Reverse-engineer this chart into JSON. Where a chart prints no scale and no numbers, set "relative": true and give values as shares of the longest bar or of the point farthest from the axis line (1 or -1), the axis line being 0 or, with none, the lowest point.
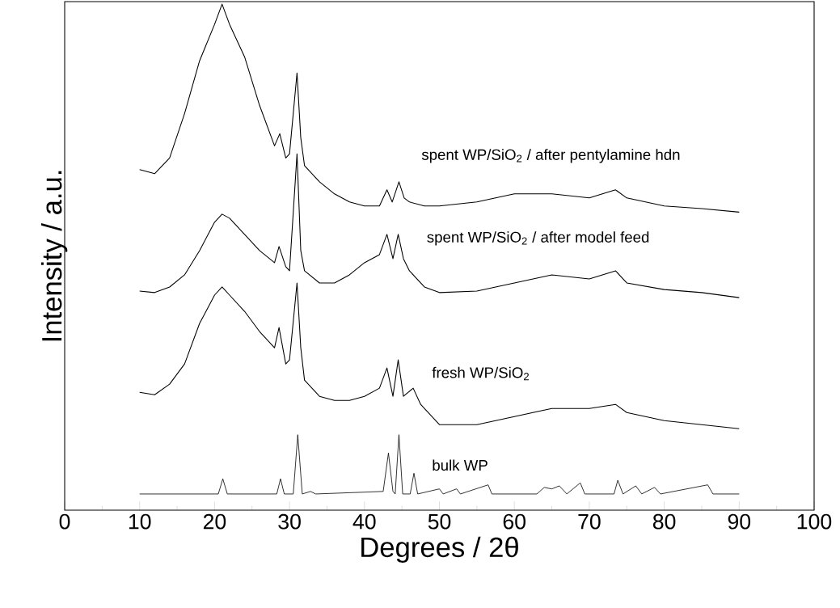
{
  "chart_data": {
    "type": "line",
    "relative": true,
    "xlabel": "Degrees / 2θ",
    "ylabel": "Intensity / a.u.",
    "xlim": [
      0,
      100
    ],
    "xticks": [
      0,
      10,
      20,
      30,
      40,
      50,
      60,
      70,
      80,
      90,
      100
    ],
    "tick_labels": "x",
    "grid": false,
    "legend": false,
    "marker": "none",
    "line_style": "solid",
    "series": [
      {
        "name": "spent WP/SiO$_{2}$ / after pentylamine hdn",
        "color": "#000000",
        "x": [
          10,
          12,
          14,
          16,
          18,
          20,
          21,
          22,
          24,
          26,
          28,
          28.7,
          29.5,
          30,
          31,
          31.5,
          32,
          34,
          36,
          38,
          40,
          42,
          43,
          43.7,
          44.6,
          45.3,
          46,
          48,
          50,
          55,
          60,
          65,
          70,
          73.5,
          75,
          80,
          85,
          90
        ],
        "values": [
          0.673,
          0.665,
          0.696,
          0.784,
          0.888,
          0.96,
          1.0,
          0.96,
          0.896,
          0.8,
          0.72,
          0.744,
          0.696,
          0.704,
          0.864,
          0.736,
          0.681,
          0.649,
          0.625,
          0.609,
          0.601,
          0.601,
          0.633,
          0.609,
          0.649,
          0.617,
          0.609,
          0.601,
          0.601,
          0.609,
          0.625,
          0.625,
          0.617,
          0.633,
          0.617,
          0.601,
          0.596,
          0.589
        ]
      },
      {
        "name": "spent WP/SiO$_{2}$ / after model feed",
        "color": "#000000",
        "x": [
          10,
          12,
          14,
          16,
          18,
          20,
          21,
          22,
          24,
          26,
          28,
          28.6,
          29.5,
          30,
          31,
          31.5,
          32,
          34,
          36,
          38,
          40,
          42,
          43,
          43.8,
          44.5,
          45.2,
          46,
          48,
          50,
          55,
          60,
          65,
          70,
          73.5,
          75,
          80,
          85,
          90
        ],
        "values": [
          0.433,
          0.43,
          0.441,
          0.465,
          0.513,
          0.569,
          0.585,
          0.577,
          0.545,
          0.513,
          0.489,
          0.521,
          0.481,
          0.473,
          0.704,
          0.513,
          0.473,
          0.449,
          0.449,
          0.465,
          0.489,
          0.505,
          0.545,
          0.497,
          0.545,
          0.497,
          0.473,
          0.441,
          0.43,
          0.433,
          0.449,
          0.465,
          0.457,
          0.473,
          0.449,
          0.436,
          0.43,
          0.42
        ]
      },
      {
        "name": "fresh WP/SiO$_{2}$",
        "color": "#000000",
        "x": [
          10,
          12,
          14,
          16,
          18,
          20,
          21,
          22,
          24,
          26,
          28,
          28.6,
          29.5,
          30,
          31,
          31.5,
          32,
          34,
          36,
          38,
          40,
          42,
          43,
          43.8,
          44.5,
          45.2,
          46.5,
          47.5,
          50,
          55,
          60,
          65,
          70,
          73.5,
          75,
          80,
          85,
          90
        ],
        "values": [
          0.233,
          0.228,
          0.249,
          0.289,
          0.369,
          0.425,
          0.441,
          0.425,
          0.393,
          0.353,
          0.321,
          0.361,
          0.289,
          0.297,
          0.449,
          0.321,
          0.257,
          0.225,
          0.217,
          0.217,
          0.225,
          0.241,
          0.281,
          0.225,
          0.297,
          0.225,
          0.241,
          0.209,
          0.169,
          0.169,
          0.185,
          0.201,
          0.201,
          0.209,
          0.193,
          0.177,
          0.169,
          0.161
        ]
      },
      {
        "name": "bulk WP",
        "color": "#000000",
        "x": [
          10,
          20.5,
          21.1,
          21.7,
          28.3,
          28.8,
          29.3,
          30.5,
          31.1,
          31.7,
          32.8,
          33.5,
          42.5,
          43.2,
          43.8,
          44.1,
          44.6,
          45.1,
          46.1,
          46.6,
          47.1,
          50,
          50.5,
          52.3,
          52.8,
          56.5,
          57,
          63,
          64,
          65,
          66,
          67,
          68.8,
          69.4,
          73.3,
          73.8,
          74.5,
          76.2,
          77,
          78.7,
          79.5,
          85.8,
          86.5,
          90
        ],
        "values": [
          0.032,
          0.032,
          0.062,
          0.032,
          0.032,
          0.062,
          0.032,
          0.032,
          0.149,
          0.032,
          0.037,
          0.032,
          0.037,
          0.113,
          0.037,
          0.032,
          0.149,
          0.032,
          0.032,
          0.073,
          0.032,
          0.042,
          0.032,
          0.042,
          0.032,
          0.05,
          0.032,
          0.032,
          0.045,
          0.042,
          0.048,
          0.032,
          0.054,
          0.032,
          0.032,
          0.059,
          0.032,
          0.048,
          0.032,
          0.045,
          0.032,
          0.05,
          0.032,
          0.032
        ]
      }
    ]
  }
}
